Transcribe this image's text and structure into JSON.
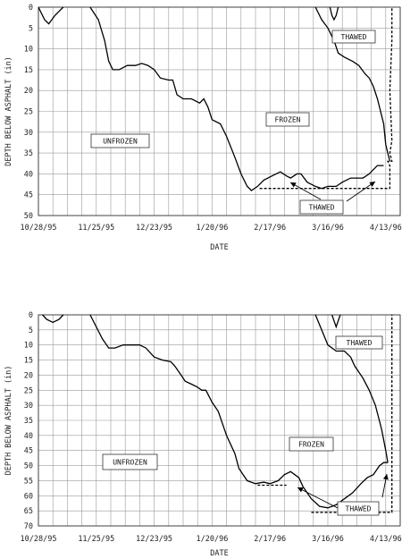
{
  "chart_data": [
    {
      "type": "line",
      "xlabel": "DATE",
      "ylabel": "DEPTH BELOW ASPHALT (in)",
      "ylim": [
        0,
        50
      ],
      "y_inverted": true,
      "grid": true,
      "x_range": [
        "1995-10-28",
        "1996-04-20"
      ],
      "x_ticks": [
        "10/28/95",
        "11/25/95",
        "12/23/95",
        "1/20/96",
        "2/17/96",
        "3/16/96",
        "4/13/96"
      ],
      "y_ticks": [
        0,
        5,
        10,
        15,
        20,
        25,
        30,
        35,
        40,
        45,
        50
      ],
      "annotations": [
        "THAWED",
        "FROZEN",
        "UNFROZEN",
        "THAWED"
      ],
      "series": [
        {
          "style": "solid",
          "segments": [
            [
              [
                "1995-10-28",
                0
              ],
              [
                "1995-10-31",
                3
              ],
              [
                "1995-11-02",
                4
              ],
              [
                "1995-11-05",
                2
              ],
              [
                "1995-11-07",
                1
              ],
              [
                "1995-11-09",
                0
              ]
            ],
            [
              [
                "1995-11-22",
                0
              ],
              [
                "1995-11-26",
                3
              ],
              [
                "1995-11-29",
                8
              ],
              [
                "1995-12-01",
                13
              ],
              [
                "1995-12-03",
                15
              ],
              [
                "1995-12-06",
                15
              ],
              [
                "1995-12-10",
                14
              ],
              [
                "1995-12-14",
                14
              ],
              [
                "1995-12-17",
                13.5
              ],
              [
                "1995-12-20",
                14
              ],
              [
                "1995-12-23",
                15
              ],
              [
                "1995-12-26",
                17
              ],
              [
                "1995-12-30",
                17.5
              ],
              [
                "1996-01-01",
                17.5
              ],
              [
                "1996-01-03",
                21
              ],
              [
                "1996-01-06",
                22
              ],
              [
                "1996-01-10",
                22
              ],
              [
                "1996-01-14",
                23
              ],
              [
                "1996-01-16",
                22
              ],
              [
                "1996-01-18",
                24
              ],
              [
                "1996-01-20",
                27
              ],
              [
                "1996-01-24",
                28
              ],
              [
                "1996-01-27",
                31
              ],
              [
                "1996-01-31",
                36
              ],
              [
                "1996-02-03",
                40
              ],
              [
                "1996-02-06",
                43
              ],
              [
                "1996-02-08",
                44
              ],
              [
                "1996-02-11",
                43
              ],
              [
                "1996-02-14",
                41.5
              ],
              [
                "1996-02-18",
                40.5
              ],
              [
                "1996-02-22",
                39.5
              ],
              [
                "1996-02-25",
                40.5
              ],
              [
                "1996-02-27",
                41
              ],
              [
                "1996-03-01",
                40
              ],
              [
                "1996-03-03",
                40
              ],
              [
                "1996-03-06",
                42
              ],
              [
                "1996-03-10",
                43
              ],
              [
                "1996-03-13",
                43.5
              ],
              [
                "1996-03-16",
                43
              ],
              [
                "1996-03-20",
                43
              ],
              [
                "1996-03-23",
                42
              ],
              [
                "1996-03-27",
                41
              ],
              [
                "1996-04-02",
                41
              ],
              [
                "1996-04-05",
                40
              ],
              [
                "1996-04-07",
                39
              ],
              [
                "1996-04-09",
                38
              ],
              [
                "1996-04-12",
                38
              ]
            ],
            [
              [
                "1996-04-15",
                37
              ],
              [
                "1996-04-13",
                33
              ],
              [
                "1996-04-12",
                28
              ],
              [
                "1996-04-09",
                22
              ],
              [
                "1996-04-07",
                19
              ],
              [
                "1996-04-05",
                17
              ],
              [
                "1996-04-03",
                16
              ],
              [
                "1996-03-31",
                14
              ],
              [
                "1996-03-28",
                13
              ],
              [
                "1996-03-24",
                12
              ],
              [
                "1996-03-21",
                11
              ],
              [
                "1996-03-19",
                8
              ],
              [
                "1996-03-16",
                5
              ],
              [
                "1996-03-13",
                3
              ],
              [
                "1996-03-10",
                0
              ]
            ],
            [
              [
                "1996-03-17",
                0
              ],
              [
                "1996-03-18",
                2
              ],
              [
                "1996-03-19",
                3
              ],
              [
                "1996-03-20",
                2
              ],
              [
                "1996-03-21",
                0
              ]
            ]
          ]
        },
        {
          "style": "dashed",
          "segments": [
            [
              [
                "1996-02-12",
                43.5
              ],
              [
                "1996-04-15",
                43.5
              ],
              [
                "1996-04-15",
                38
              ],
              [
                "1996-04-14",
                37
              ],
              [
                "1996-04-16",
                37
              ],
              [
                "1996-04-15",
                35
              ],
              [
                "1996-04-16",
                32
              ],
              [
                "1996-04-15",
                20
              ],
              [
                "1996-04-16",
                8
              ],
              [
                "1996-04-16",
                0
              ]
            ]
          ]
        }
      ]
    },
    {
      "type": "line",
      "xlabel": "DATE",
      "ylabel": "DEPTH BELOW ASPHALT (in)",
      "ylim": [
        0,
        70
      ],
      "y_inverted": true,
      "grid": true,
      "x_range": [
        "1995-10-28",
        "1996-04-20"
      ],
      "x_ticks": [
        "10/28/95",
        "11/25/95",
        "12/23/95",
        "1/20/96",
        "2/17/96",
        "3/16/96",
        "4/13/96"
      ],
      "y_ticks": [
        0,
        5,
        10,
        15,
        20,
        25,
        30,
        35,
        40,
        45,
        50,
        55,
        60,
        65,
        70
      ],
      "annotations": [
        "THAWED",
        "FROZEN",
        "UNFROZEN",
        "THAWED"
      ],
      "series": [
        {
          "style": "solid",
          "segments": [
            [
              [
                "1995-10-30",
                0
              ],
              [
                "1995-11-01",
                1.5
              ],
              [
                "1995-11-04",
                2.5
              ],
              [
                "1995-11-07",
                1.5
              ],
              [
                "1995-11-09",
                0
              ]
            ],
            [
              [
                "1995-11-22",
                0
              ],
              [
                "1995-11-25",
                4
              ],
              [
                "1995-11-28",
                8
              ],
              [
                "1995-12-01",
                11
              ],
              [
                "1995-12-04",
                11
              ],
              [
                "1995-12-08",
                10
              ],
              [
                "1995-12-12",
                10
              ],
              [
                "1995-12-16",
                10
              ],
              [
                "1995-12-19",
                11
              ],
              [
                "1995-12-23",
                14
              ],
              [
                "1995-12-27",
                15
              ],
              [
                "1995-12-31",
                15.5
              ],
              [
                "1996-01-02",
                17
              ],
              [
                "1996-01-05",
                20
              ],
              [
                "1996-01-07",
                22
              ],
              [
                "1996-01-10",
                23
              ],
              [
                "1996-01-13",
                24
              ],
              [
                "1996-01-15",
                25
              ],
              [
                "1996-01-17",
                25
              ],
              [
                "1996-01-20",
                29
              ],
              [
                "1996-01-23",
                32
              ],
              [
                "1996-01-27",
                40
              ],
              [
                "1996-01-31",
                46
              ],
              [
                "1996-02-02",
                51
              ],
              [
                "1996-02-06",
                55
              ],
              [
                "1996-02-10",
                56
              ],
              [
                "1996-02-14",
                55.5
              ],
              [
                "1996-02-17",
                56
              ],
              [
                "1996-02-21",
                55
              ],
              [
                "1996-02-24",
                53
              ],
              [
                "1996-02-27",
                52
              ],
              [
                "1996-03-02",
                54
              ],
              [
                "1996-03-04",
                57
              ],
              [
                "1996-03-08",
                61
              ],
              [
                "1996-03-12",
                63.5
              ],
              [
                "1996-03-16",
                64
              ],
              [
                "1996-03-20",
                63
              ],
              [
                "1996-03-24",
                61
              ],
              [
                "1996-03-28",
                59
              ],
              [
                "1996-04-01",
                56
              ],
              [
                "1996-04-04",
                54
              ],
              [
                "1996-04-07",
                53
              ],
              [
                "1996-04-10",
                50
              ],
              [
                "1996-04-12",
                49
              ],
              [
                "1996-04-14",
                49
              ]
            ],
            [
              [
                "1996-04-14",
                49
              ],
              [
                "1996-04-13",
                45
              ],
              [
                "1996-04-11",
                38
              ],
              [
                "1996-04-08",
                30
              ],
              [
                "1996-04-05",
                25
              ],
              [
                "1996-04-02",
                21
              ],
              [
                "1996-03-29",
                17
              ],
              [
                "1996-03-27",
                14
              ],
              [
                "1996-03-24",
                12
              ],
              [
                "1996-03-20",
                12
              ],
              [
                "1996-03-16",
                10
              ],
              [
                "1996-03-13",
                5
              ],
              [
                "1996-03-10",
                0
              ]
            ],
            [
              [
                "1996-03-18",
                0
              ],
              [
                "1996-03-19",
                2
              ],
              [
                "1996-03-20",
                4
              ],
              [
                "1996-03-21",
                2
              ],
              [
                "1996-03-22",
                0
              ]
            ]
          ]
        },
        {
          "style": "dashed",
          "segments": [
            [
              [
                "1996-02-11",
                56.5
              ],
              [
                "1996-02-25",
                56.5
              ]
            ],
            [
              [
                "1996-03-08",
                65.5
              ],
              [
                "1996-04-16",
                65.5
              ],
              [
                "1996-04-16",
                0
              ]
            ]
          ]
        }
      ]
    }
  ]
}
